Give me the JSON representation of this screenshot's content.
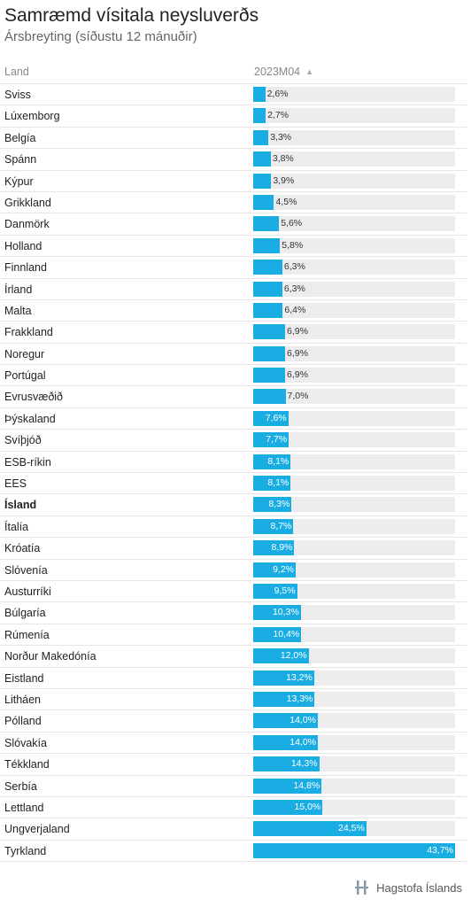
{
  "title": "Samræmd vísitala neysluverðs",
  "subtitle": "Ársbreyting (síðustu 12 mánuðir)",
  "columns": {
    "country": "Land",
    "value": "2023M04"
  },
  "brand": "Hagstofa Íslands",
  "colors": {
    "bar": "#1aade4",
    "track": "#ececec"
  },
  "chart_data": {
    "type": "bar",
    "orientation": "horizontal",
    "title": "Samræmd vísitala neysluverðs",
    "subtitle": "Ársbreyting (síðustu 12 mánuðir)",
    "series_label": "2023M04",
    "xlim": [
      0,
      43.7
    ],
    "highlight": "Ísland",
    "categories": [
      "Sviss",
      "Lúxemborg",
      "Belgía",
      "Spánn",
      "Kýpur",
      "Grikkland",
      "Danmörk",
      "Holland",
      "Finnland",
      "Írland",
      "Malta",
      "Frakkland",
      "Noregur",
      "Portúgal",
      "Evrusvæðið",
      "Þýskaland",
      "Svíþjóð",
      "ESB-ríkin",
      "EES",
      "Ísland",
      "Ítalía",
      "Króatía",
      "Slóvenía",
      "Austurríki",
      "Búlgaría",
      "Rúmenía",
      "Norður Makedónía",
      "Eistland",
      "Litháen",
      "Pólland",
      "Slóvakía",
      "Tékkland",
      "Serbía",
      "Lettland",
      "Ungverjaland",
      "Tyrkland"
    ],
    "values": [
      2.6,
      2.7,
      3.3,
      3.8,
      3.9,
      4.5,
      5.6,
      5.8,
      6.3,
      6.3,
      6.4,
      6.9,
      6.9,
      6.9,
      7.0,
      7.6,
      7.7,
      8.1,
      8.1,
      8.3,
      8.7,
      8.9,
      9.2,
      9.5,
      10.3,
      10.4,
      12.0,
      13.2,
      13.3,
      14.0,
      14.0,
      14.3,
      14.8,
      15.0,
      24.5,
      43.7
    ],
    "labels": [
      "2,6%",
      "2,7%",
      "3,3%",
      "3,8%",
      "3,9%",
      "4,5%",
      "5,6%",
      "5,8%",
      "6,3%",
      "6,3%",
      "6,4%",
      "6,9%",
      "6,9%",
      "6,9%",
      "7,0%",
      "7,6%",
      "7,7%",
      "8,1%",
      "8,1%",
      "8,3%",
      "8,7%",
      "8,9%",
      "9,2%",
      "9,5%",
      "10,3%",
      "10,4%",
      "12,0%",
      "13,2%",
      "13,3%",
      "14,0%",
      "14,0%",
      "14,3%",
      "14,8%",
      "15,0%",
      "24,5%",
      "43,7%"
    ]
  }
}
